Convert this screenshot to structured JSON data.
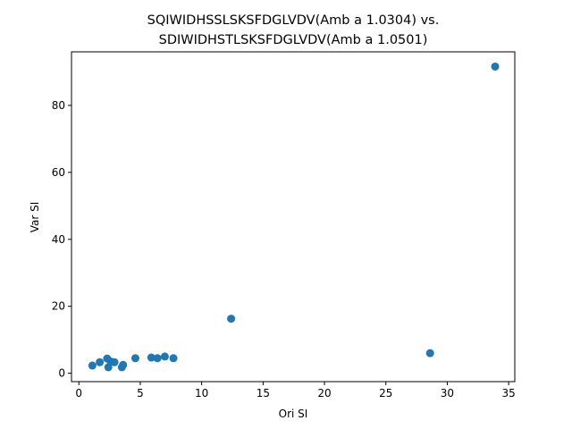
{
  "chart_data": {
    "type": "scatter",
    "title_line1": "SQIWIDHSSLSKSFDGLVDV(Amb a 1.0304) vs.",
    "title_line2": "SDIWIDHSTLSKSFDGLVDV(Amb a 1.0501)",
    "xlabel": "Ori SI",
    "ylabel": "Var SI",
    "xlim": [
      -0.6,
      35.5
    ],
    "ylim": [
      -2.5,
      96.0
    ],
    "xticks": [
      0,
      5,
      10,
      15,
      20,
      25,
      30,
      35
    ],
    "yticks": [
      0,
      20,
      40,
      60,
      80
    ],
    "grid": false,
    "marker_color": "#1f77b4",
    "points": [
      {
        "x": 1.1,
        "y": 2.3
      },
      {
        "x": 1.7,
        "y": 3.3
      },
      {
        "x": 2.3,
        "y": 4.4
      },
      {
        "x": 2.4,
        "y": 1.8
      },
      {
        "x": 2.6,
        "y": 3.5
      },
      {
        "x": 2.9,
        "y": 3.3
      },
      {
        "x": 3.5,
        "y": 1.8
      },
      {
        "x": 3.6,
        "y": 2.5
      },
      {
        "x": 4.6,
        "y": 4.5
      },
      {
        "x": 5.9,
        "y": 4.7
      },
      {
        "x": 6.4,
        "y": 4.5
      },
      {
        "x": 7.0,
        "y": 5.0
      },
      {
        "x": 7.7,
        "y": 4.5
      },
      {
        "x": 12.4,
        "y": 16.3
      },
      {
        "x": 28.6,
        "y": 6.0
      },
      {
        "x": 33.9,
        "y": 91.6
      }
    ]
  }
}
